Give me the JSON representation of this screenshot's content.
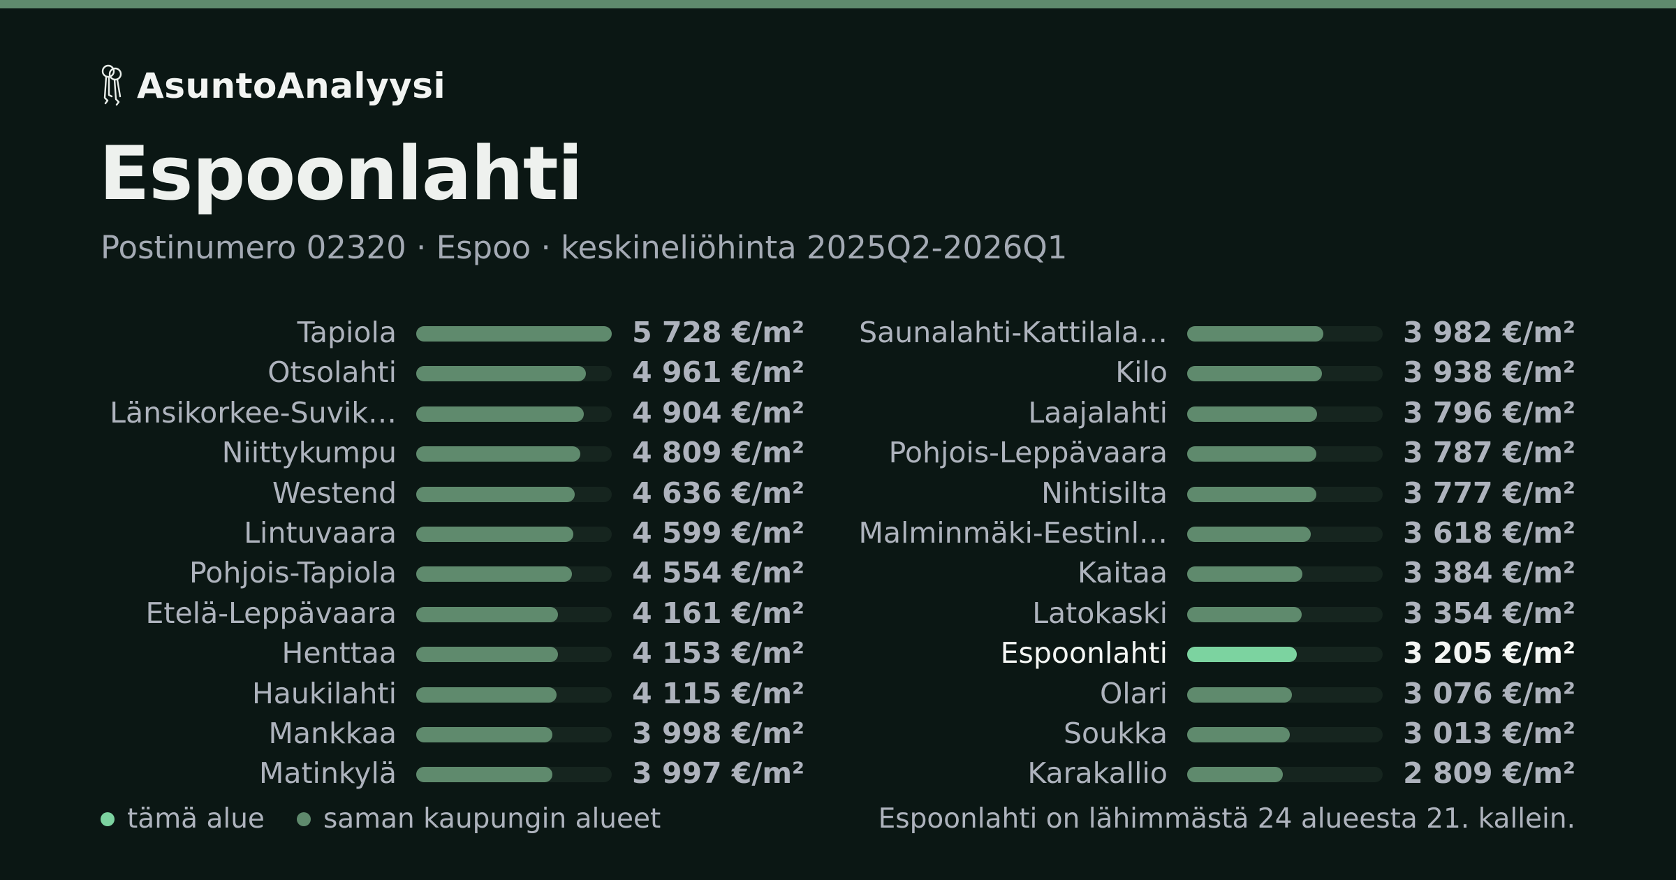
{
  "brand": {
    "name": "AsuntoAnalyysi",
    "icon": "keys-icon"
  },
  "header": {
    "title": "Espoonlahti",
    "subtitle": "Postinumero 02320 · Espoo · keskineliöhinta 2025Q2-2026Q1"
  },
  "colors": {
    "background": "#0b1714",
    "bar": "#5f8a6d",
    "highlight": "#7cd3a0",
    "track": "#16251f",
    "text": "#aeb3bd"
  },
  "chart_data": {
    "type": "bar",
    "orientation": "horizontal",
    "unit": "€/m²",
    "max": 5728,
    "highlight": "Espoonlahti",
    "columns": [
      {
        "items": [
          {
            "label": "Tapiola",
            "value": 5728,
            "value_text": "5 728 €/m²"
          },
          {
            "label": "Otsolahti",
            "value": 4961,
            "value_text": "4 961 €/m²"
          },
          {
            "label": "Länsikorkee-Suvik…",
            "value": 4904,
            "value_text": "4 904 €/m²"
          },
          {
            "label": "Niittykumpu",
            "value": 4809,
            "value_text": "4 809 €/m²"
          },
          {
            "label": "Westend",
            "value": 4636,
            "value_text": "4 636 €/m²"
          },
          {
            "label": "Lintuvaara",
            "value": 4599,
            "value_text": "4 599 €/m²"
          },
          {
            "label": "Pohjois-Tapiola",
            "value": 4554,
            "value_text": "4 554 €/m²"
          },
          {
            "label": "Etelä-Leppävaara",
            "value": 4161,
            "value_text": "4 161 €/m²"
          },
          {
            "label": "Henttaa",
            "value": 4153,
            "value_text": "4 153 €/m²"
          },
          {
            "label": "Haukilahti",
            "value": 4115,
            "value_text": "4 115 €/m²"
          },
          {
            "label": "Mankkaa",
            "value": 3998,
            "value_text": "3 998 €/m²"
          },
          {
            "label": "Matinkylä",
            "value": 3997,
            "value_text": "3 997 €/m²"
          }
        ]
      },
      {
        "items": [
          {
            "label": "Saunalahti-Kattilala…",
            "value": 3982,
            "value_text": "3 982 €/m²"
          },
          {
            "label": "Kilo",
            "value": 3938,
            "value_text": "3 938 €/m²"
          },
          {
            "label": "Laajalahti",
            "value": 3796,
            "value_text": "3 796 €/m²"
          },
          {
            "label": "Pohjois-Leppävaara",
            "value": 3787,
            "value_text": "3 787 €/m²"
          },
          {
            "label": "Nihtisilta",
            "value": 3777,
            "value_text": "3 777 €/m²"
          },
          {
            "label": "Malminmäki-Eestinl…",
            "value": 3618,
            "value_text": "3 618 €/m²"
          },
          {
            "label": "Kaitaa",
            "value": 3384,
            "value_text": "3 384 €/m²"
          },
          {
            "label": "Latokaski",
            "value": 3354,
            "value_text": "3 354 €/m²"
          },
          {
            "label": "Espoonlahti",
            "value": 3205,
            "value_text": "3 205 €/m²"
          },
          {
            "label": "Olari",
            "value": 3076,
            "value_text": "3 076 €/m²"
          },
          {
            "label": "Soukka",
            "value": 3013,
            "value_text": "3 013 €/m²"
          },
          {
            "label": "Karakallio",
            "value": 2809,
            "value_text": "2 809 €/m²"
          }
        ]
      }
    ]
  },
  "legend": {
    "this_area": "tämä alue",
    "same_city": "saman kaupungin alueet"
  },
  "footnote": "Espoonlahti on lähimmästä 24 alueesta 21. kallein."
}
